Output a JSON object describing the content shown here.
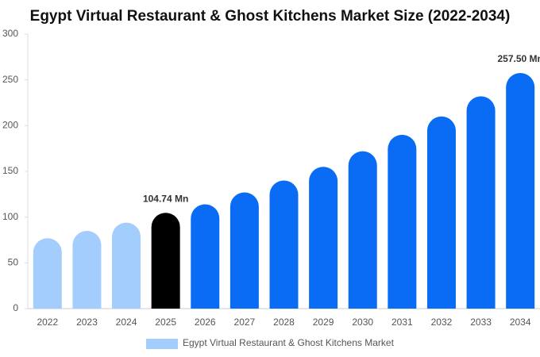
{
  "chart_data": {
    "type": "bar",
    "title": "Egypt Virtual Restaurant & Ghost Kitchens Market Size (2022-2034)",
    "categories": [
      "2022",
      "2023",
      "2024",
      "2025",
      "2026",
      "2027",
      "2028",
      "2029",
      "2030",
      "2031",
      "2032",
      "2033",
      "2034"
    ],
    "series": [
      {
        "name": "Egypt Virtual Restaurant & Ghost Kitchens Market",
        "color": "#a3cdfd",
        "colors": [
          "#a3cdfd",
          "#a3cdfd",
          "#a3cdfd",
          "#000000",
          "#0a6cf5",
          "#0a6cf5",
          "#0a6cf5",
          "#0a6cf5",
          "#0a6cf5",
          "#0a6cf5",
          "#0a6cf5",
          "#0a6cf5",
          "#0a6cf5"
        ],
        "values": [
          77,
          85,
          94,
          104.74,
          114,
          127,
          140,
          155,
          172,
          190,
          210,
          232,
          257.5
        ],
        "value_labels": [
          null,
          null,
          null,
          "104.74 Mn",
          null,
          null,
          null,
          null,
          null,
          null,
          null,
          null,
          "257.50 Mn"
        ]
      }
    ],
    "ylim": [
      0,
      300
    ],
    "yticks": [
      0,
      50,
      100,
      150,
      200,
      250,
      300
    ],
    "grid": false,
    "legend": "bottom"
  }
}
